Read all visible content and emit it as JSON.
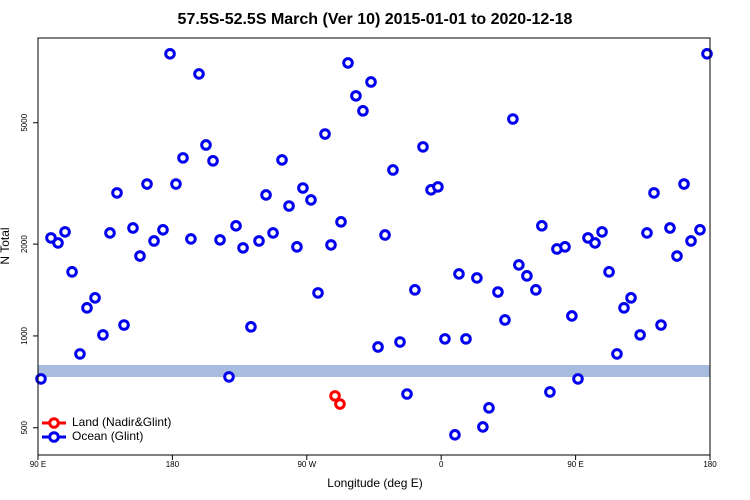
{
  "chart_data": {
    "type": "scatter",
    "title": "57.5S-52.5S March (Ver 10)   2015-01-01 to 2020-12-18",
    "x_label": "Longitude (deg E)",
    "y_label": "N Total",
    "xlim": [
      90,
      540
    ],
    "ylim": [
      407,
      9480
    ],
    "log_y": true,
    "xticks": [
      {
        "value": 90,
        "label": "90 E"
      },
      180,
      {
        "value": 270,
        "label": "90 W"
      },
      {
        "value": 360,
        "label": "0"
      },
      {
        "value": 450,
        "label": "90 E"
      },
      {
        "value": 540,
        "label": "180"
      }
    ],
    "yticks": [
      500,
      1000,
      2000,
      5000
    ],
    "legend": "bottom-left",
    "series": [
      {
        "name": "Land (Nadir&Glint)",
        "color": "#ff0000",
        "x": [
          288.9,
          292.2
        ],
        "values": [
          636,
          598
        ]
      },
      {
        "name": "Ocean (Glint)",
        "color": "#0000ee",
        "x": [
          92.0,
          98.7,
          103.4,
          108.1,
          112.8,
          118.1,
          122.8,
          128.2,
          133.5,
          138.2,
          142.9,
          147.6,
          153.6,
          158.3,
          163.0,
          167.7,
          173.7,
          178.4,
          182.4,
          187.1,
          192.4,
          197.8,
          202.5,
          207.2,
          211.9,
          217.9,
          222.6,
          227.3,
          232.6,
          238.0,
          242.7,
          247.4,
          253.4,
          258.1,
          263.4,
          267.4,
          272.8,
          277.5,
          282.2,
          286.2,
          292.9,
          297.6,
          302.9,
          307.6,
          313.0,
          317.7,
          322.4,
          327.7,
          332.4,
          337.1,
          342.4,
          347.8,
          353.2,
          357.8,
          362.5,
          369.2,
          371.9,
          376.6,
          383.9,
          387.9,
          392.0,
          398.0,
          402.7,
          408.0,
          412.0,
          417.4,
          423.4,
          427.4,
          432.8,
          437.5,
          442.9,
          447.5,
          451.6,
          458.3,
          463.0,
          467.7,
          472.4,
          477.7,
          482.4,
          487.1,
          493.2,
          497.8,
          502.5,
          507.2,
          513.2,
          517.9,
          522.6,
          527.3,
          533.3,
          538.0
        ],
        "values": [
          723,
          2096,
          2018,
          2193,
          1622,
          873,
          1236,
          1333,
          1008,
          2176,
          2944,
          1086,
          2259,
          1828,
          3148,
          2048,
          2228,
          8414,
          3148,
          3835,
          2080,
          7228,
          4227,
          3750,
          2065,
          734,
          2296,
          1944,
          1071,
          2048,
          2899,
          2176,
          3776,
          2667,
          1959,
          3055,
          2792,
          1384,
          4592,
          1988,
          2366,
          7852,
          6124,
          5470,
          6802,
          920,
          2143,
          3500,
          955,
          645,
          1416,
          4167,
          3013,
          3081,
          978,
          474,
          1597,
          978,
          1549,
          503,
          581,
          1393,
          1128,
          5143,
          1709,
          1574,
          1416,
          2296,
          655,
          1928,
          1959,
          1163,
          723,
          2096,
          2018,
          2193,
          1622,
          873,
          1236,
          1333,
          1008,
          2176,
          2944,
          1086,
          2259,
          1828,
          3148,
          2048,
          2228,
          8414
        ]
      }
    ]
  }
}
